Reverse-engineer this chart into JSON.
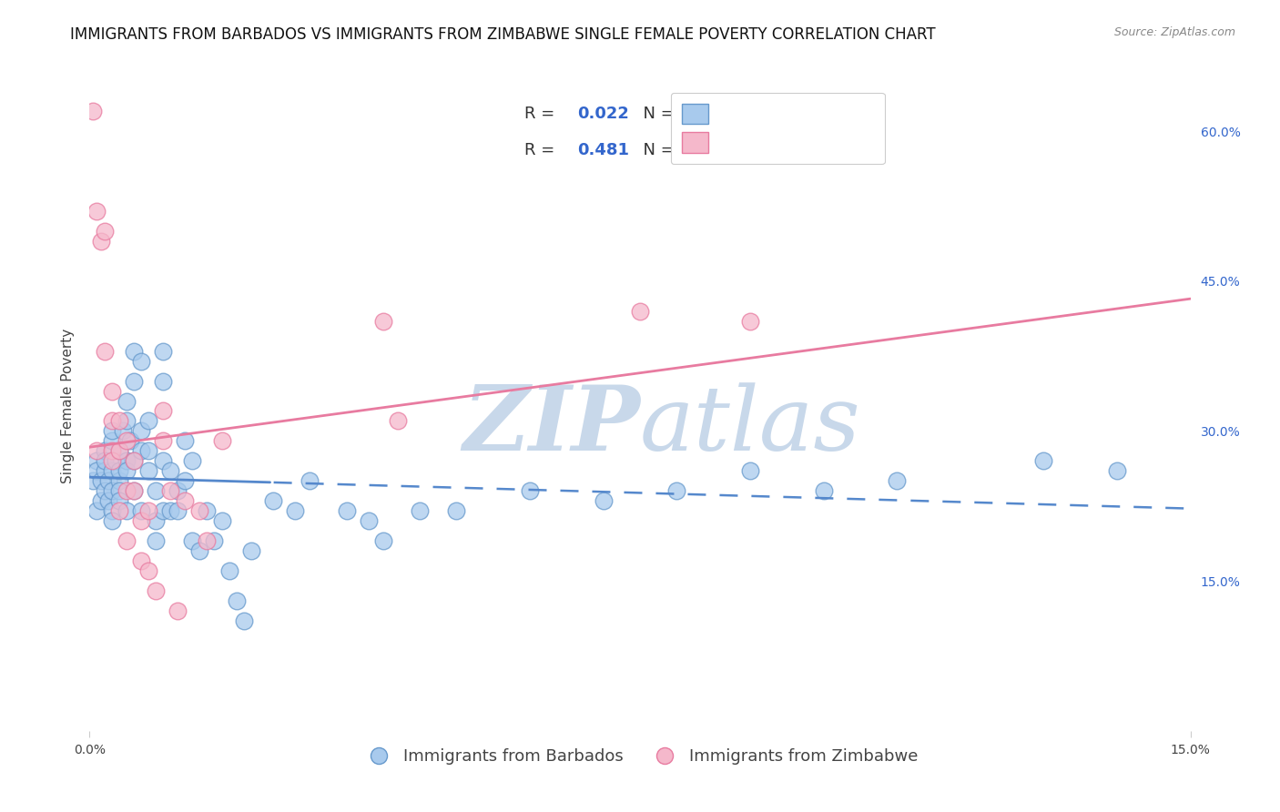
{
  "title": "IMMIGRANTS FROM BARBADOS VS IMMIGRANTS FROM ZIMBABWE SINGLE FEMALE POVERTY CORRELATION CHART",
  "source": "Source: ZipAtlas.com",
  "ylabel": "Single Female Poverty",
  "xlim": [
    0,
    0.15
  ],
  "ylim": [
    0,
    0.65
  ],
  "yticks_right": [
    0.15,
    0.3,
    0.45,
    0.6
  ],
  "ytick_right_labels": [
    "15.0%",
    "30.0%",
    "45.0%",
    "60.0%"
  ],
  "barbados_fill": "#A8CAED",
  "zimbabwe_fill": "#F5B8CB",
  "barbados_edge": "#6699CC",
  "zimbabwe_edge": "#E87BA0",
  "barbados_line_color": "#5588CC",
  "zimbabwe_line_color": "#E87BA0",
  "legend_text_color": "#333333",
  "legend_value_color": "#3366CC",
  "background_color": "#FFFFFF",
  "grid_color": "#DDDDDD",
  "watermark_zip": "ZIP",
  "watermark_atlas": "atlas",
  "watermark_color": "#C8D8EA",
  "legend_label_barbados": "Immigrants from Barbados",
  "legend_label_zimbabwe": "Immigrants from Zimbabwe",
  "title_fontsize": 12,
  "axis_label_fontsize": 11,
  "tick_fontsize": 10,
  "legend_fontsize": 13,
  "barbados_x": [
    0.0005,
    0.001,
    0.001,
    0.001,
    0.0015,
    0.0015,
    0.002,
    0.002,
    0.002,
    0.002,
    0.0025,
    0.0025,
    0.003,
    0.003,
    0.003,
    0.003,
    0.003,
    0.003,
    0.0035,
    0.004,
    0.004,
    0.004,
    0.004,
    0.004,
    0.0045,
    0.005,
    0.005,
    0.005,
    0.005,
    0.005,
    0.0055,
    0.006,
    0.006,
    0.006,
    0.006,
    0.007,
    0.007,
    0.007,
    0.007,
    0.008,
    0.008,
    0.008,
    0.009,
    0.009,
    0.009,
    0.01,
    0.01,
    0.01,
    0.01,
    0.011,
    0.011,
    0.012,
    0.012,
    0.013,
    0.013,
    0.014,
    0.014,
    0.015,
    0.016,
    0.017,
    0.018,
    0.019,
    0.02,
    0.021,
    0.022,
    0.025,
    0.028,
    0.03,
    0.035,
    0.038,
    0.04,
    0.045,
    0.05,
    0.06,
    0.07,
    0.08,
    0.09,
    0.1,
    0.11,
    0.13,
    0.14
  ],
  "barbados_y": [
    0.25,
    0.27,
    0.26,
    0.22,
    0.23,
    0.25,
    0.26,
    0.28,
    0.27,
    0.24,
    0.23,
    0.25,
    0.29,
    0.26,
    0.22,
    0.21,
    0.24,
    0.3,
    0.27,
    0.25,
    0.24,
    0.26,
    0.23,
    0.28,
    0.3,
    0.27,
    0.33,
    0.31,
    0.26,
    0.22,
    0.29,
    0.35,
    0.38,
    0.27,
    0.24,
    0.37,
    0.3,
    0.28,
    0.22,
    0.31,
    0.28,
    0.26,
    0.24,
    0.21,
    0.19,
    0.38,
    0.35,
    0.27,
    0.22,
    0.26,
    0.22,
    0.24,
    0.22,
    0.29,
    0.25,
    0.27,
    0.19,
    0.18,
    0.22,
    0.19,
    0.21,
    0.16,
    0.13,
    0.11,
    0.18,
    0.23,
    0.22,
    0.25,
    0.22,
    0.21,
    0.19,
    0.22,
    0.22,
    0.24,
    0.23,
    0.24,
    0.26,
    0.24,
    0.25,
    0.27,
    0.26
  ],
  "zimbabwe_x": [
    0.0005,
    0.001,
    0.001,
    0.0015,
    0.002,
    0.002,
    0.003,
    0.003,
    0.003,
    0.003,
    0.004,
    0.004,
    0.004,
    0.005,
    0.005,
    0.005,
    0.006,
    0.006,
    0.007,
    0.007,
    0.008,
    0.008,
    0.009,
    0.01,
    0.01,
    0.011,
    0.012,
    0.013,
    0.015,
    0.016,
    0.018,
    0.04,
    0.042,
    0.075,
    0.09
  ],
  "zimbabwe_y": [
    0.62,
    0.52,
    0.28,
    0.49,
    0.5,
    0.38,
    0.28,
    0.34,
    0.31,
    0.27,
    0.31,
    0.28,
    0.22,
    0.29,
    0.24,
    0.19,
    0.27,
    0.24,
    0.21,
    0.17,
    0.22,
    0.16,
    0.14,
    0.32,
    0.29,
    0.24,
    0.12,
    0.23,
    0.22,
    0.19,
    0.29,
    0.41,
    0.31,
    0.42,
    0.41
  ]
}
